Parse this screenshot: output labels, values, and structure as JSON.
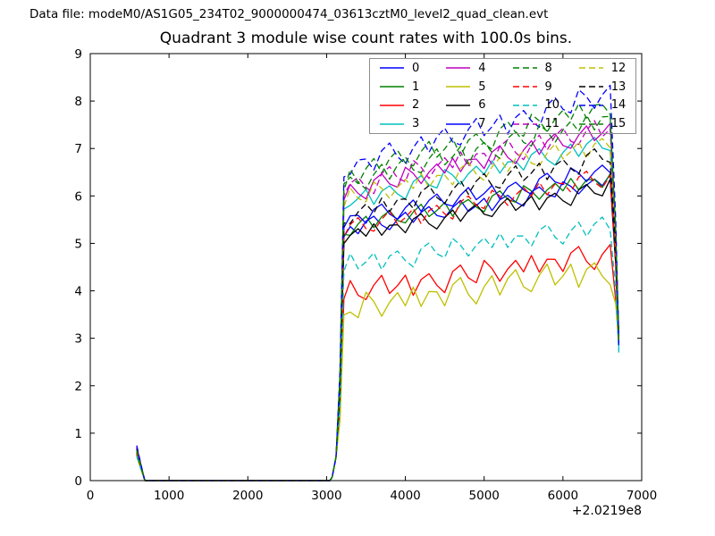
{
  "header": {
    "data_file_label": "Data file: modeM0/AS1G05_234T02_9000000474_03613cztM0_level2_quad_clean.evt"
  },
  "colors": {
    "background": "#ffffff",
    "axis": "#000000",
    "legend_border": "#8f8f8f"
  },
  "chart_data": {
    "type": "line",
    "title": "Quadrant 3 module wise count rates with 100.0s bins.",
    "xlabel": "",
    "ylabel": "",
    "x_axis_offset_label": "+2.0219e8",
    "xlim": [
      0,
      7000
    ],
    "ylim": [
      0,
      9
    ],
    "xticks": [
      "0",
      "1000",
      "2000",
      "3000",
      "4000",
      "5000",
      "6000",
      "7000"
    ],
    "yticks": [
      "0",
      "1",
      "2",
      "3",
      "4",
      "5",
      "6",
      "7",
      "8",
      "9"
    ],
    "bin_size_label": "100.0s",
    "grid": false,
    "legend": {
      "position": "upper right",
      "columns": 4,
      "rows": 4
    },
    "segments": {
      "spike_x": [
        590,
        640,
        688
      ],
      "zero_until": 3040,
      "rise_x": [
        3070,
        3120,
        3170,
        3220
      ],
      "plateau": {
        "x_start": 3300,
        "x_step": 100,
        "n": 34
      },
      "drop_x": [
        6670,
        6710
      ]
    },
    "noise": [
      0.3,
      -0.7,
      0.6,
      1.0,
      -0.2,
      -0.9,
      0.15,
      0.8,
      -0.55,
      0.45,
      0.95,
      -0.25,
      -0.65,
      0.35,
      1.0,
      -0.45,
      0.05,
      0.75,
      -0.85,
      0.25,
      0.6,
      -0.35,
      -1.0,
      0.5,
      0.9,
      -0.15,
      -0.6,
      1.0,
      0.3,
      -0.75,
      0.1,
      0.65,
      -0.3,
      0.85,
      -0.5,
      0.4
    ],
    "series": [
      {
        "label": "0",
        "color": "#0000ff",
        "dashed": false,
        "spike_top": 0.62,
        "plateau_start": 5.3,
        "plateau_end": 6.3,
        "amp": 0.18,
        "phase": 0,
        "end_value": 2.9
      },
      {
        "label": "1",
        "color": "#008000",
        "dashed": false,
        "spike_top": 0.68,
        "plateau_start": 5.35,
        "plateau_end": 6.35,
        "amp": 0.2,
        "phase": 5,
        "end_value": 3.0
      },
      {
        "label": "2",
        "color": "#ff0000",
        "dashed": false,
        "spike_top": 0.55,
        "plateau_start": 3.95,
        "plateau_end": 4.75,
        "amp": 0.28,
        "phase": 10,
        "end_value": 2.85
      },
      {
        "label": "3",
        "color": "#00bfbf",
        "dashed": false,
        "spike_top": 0.6,
        "plateau_start": 5.9,
        "plateau_end": 7.1,
        "amp": 0.22,
        "phase": 15,
        "end_value": 2.75
      },
      {
        "label": "4",
        "color": "#bf00bf",
        "dashed": false,
        "spike_top": 0.72,
        "plateau_start": 6.1,
        "plateau_end": 7.35,
        "amp": 0.24,
        "phase": 20,
        "end_value": 3.05
      },
      {
        "label": "5",
        "color": "#bfbf00",
        "dashed": false,
        "spike_top": 0.5,
        "plateau_start": 3.6,
        "plateau_end": 4.45,
        "amp": 0.32,
        "phase": 25,
        "end_value": 3.0
      },
      {
        "label": "6",
        "color": "#000000",
        "dashed": false,
        "spike_top": 0.58,
        "plateau_start": 5.15,
        "plateau_end": 6.15,
        "amp": 0.2,
        "phase": 30,
        "end_value": 2.95
      },
      {
        "label": "7",
        "color": "#0000ff",
        "dashed": false,
        "spike_top": 0.65,
        "plateau_start": 5.5,
        "plateau_end": 6.55,
        "amp": 0.2,
        "phase": 35,
        "end_value": 3.1
      },
      {
        "label": "8",
        "color": "#008000",
        "dashed": true,
        "spike_top": 0.66,
        "plateau_start": 6.45,
        "plateau_end": 7.9,
        "amp": 0.26,
        "phase": 4,
        "end_value": 2.8
      },
      {
        "label": "9",
        "color": "#ff0000",
        "dashed": true,
        "spike_top": 0.6,
        "plateau_start": 5.3,
        "plateau_end": 6.4,
        "amp": 0.22,
        "phase": 9,
        "end_value": 2.9
      },
      {
        "label": "10",
        "color": "#00bfbf",
        "dashed": true,
        "spike_top": 0.52,
        "plateau_start": 4.55,
        "plateau_end": 5.35,
        "amp": 0.24,
        "phase": 14,
        "end_value": 2.7
      },
      {
        "label": "11",
        "color": "#bf00bf",
        "dashed": true,
        "spike_top": 0.7,
        "plateau_start": 6.2,
        "plateau_end": 7.4,
        "amp": 0.26,
        "phase": 19,
        "end_value": 3.0
      },
      {
        "label": "12",
        "color": "#bfbf00",
        "dashed": true,
        "spike_top": 0.63,
        "plateau_start": 5.95,
        "plateau_end": 7.1,
        "amp": 0.24,
        "phase": 24,
        "end_value": 2.95
      },
      {
        "label": "13",
        "color": "#000000",
        "dashed": true,
        "spike_top": 0.67,
        "plateau_start": 5.6,
        "plateau_end": 6.85,
        "amp": 0.24,
        "phase": 29,
        "end_value": 3.05
      },
      {
        "label": "14",
        "color": "#0000ff",
        "dashed": true,
        "spike_top": 0.74,
        "plateau_start": 6.6,
        "plateau_end": 8.15,
        "amp": 0.28,
        "phase": 34,
        "end_value": 2.85
      },
      {
        "label": "15",
        "color": "#008000",
        "dashed": true,
        "spike_top": 0.64,
        "plateau_start": 6.3,
        "plateau_end": 7.6,
        "amp": 0.26,
        "phase": 3,
        "end_value": 2.9
      }
    ]
  }
}
